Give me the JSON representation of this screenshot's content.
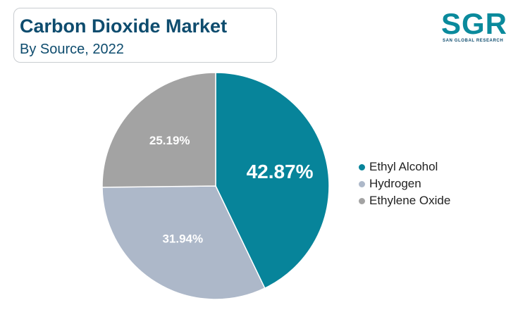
{
  "header": {
    "title": "Carbon Dioxide Market",
    "subtitle": "By Source, 2022"
  },
  "logo": {
    "letters": "SGR",
    "tagline": "SAN GLOBAL RESEARCH"
  },
  "chart_data": {
    "type": "pie",
    "title": "Carbon Dioxide Market",
    "subtitle": "By Source, 2022",
    "categories": [
      "Ethyl Alcohol",
      "Hydrogen",
      "Ethylene Oxide"
    ],
    "values": [
      42.87,
      31.94,
      25.19
    ],
    "labels": [
      "42.87%",
      "31.94%",
      "25.19%"
    ],
    "colors": [
      "#07849a",
      "#adb8c9",
      "#a3a3a3"
    ],
    "legend_position": "right",
    "start_angle": "12 o'clock",
    "direction": "clockwise"
  }
}
